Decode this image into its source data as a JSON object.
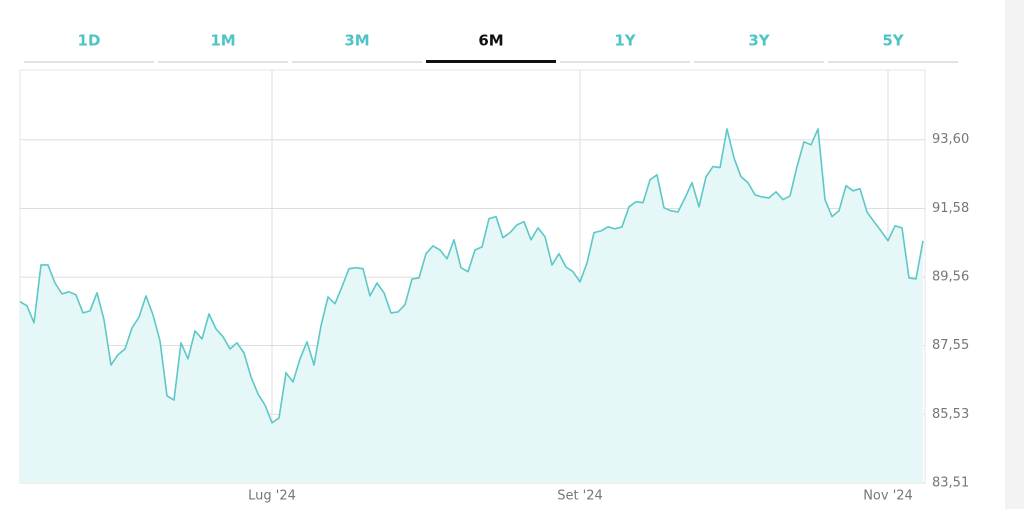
{
  "tabs": [
    {
      "label": "1D"
    },
    {
      "label": "1M"
    },
    {
      "label": "3M"
    },
    {
      "label": "6M",
      "selected": true
    },
    {
      "label": "1Y"
    },
    {
      "label": "3Y"
    },
    {
      "label": "5Y"
    }
  ],
  "chart_data": {
    "type": "line",
    "color": "#5cc8c8",
    "fill": "#e5f7f7",
    "grid": true,
    "categories": [
      null,
      null,
      null,
      null,
      null,
      null,
      null,
      null,
      null,
      null,
      null,
      null,
      null,
      null,
      null,
      null,
      null,
      null,
      null,
      null,
      null,
      null,
      null,
      null,
      null,
      null,
      null,
      null,
      null,
      null,
      null,
      null,
      null,
      null,
      null,
      null,
      "Lug '24",
      null,
      null,
      null,
      null,
      null,
      null,
      null,
      null,
      null,
      null,
      null,
      null,
      null,
      null,
      null,
      null,
      null,
      null,
      null,
      null,
      null,
      null,
      null,
      null,
      null,
      null,
      null,
      null,
      null,
      null,
      null,
      null,
      null,
      null,
      null,
      null,
      null,
      null,
      null,
      null,
      null,
      null,
      null,
      "Set '24",
      null,
      null,
      null,
      null,
      null,
      null,
      null,
      null,
      null,
      null,
      null,
      null,
      null,
      null,
      null,
      null,
      null,
      null,
      null,
      null,
      null,
      null,
      null,
      null,
      null,
      null,
      null,
      null,
      null,
      null,
      null,
      null,
      null,
      null,
      null,
      null,
      null,
      null,
      null,
      null,
      null,
      null,
      null,
      "Nov '24",
      null,
      null,
      null,
      null,
      null
    ],
    "values": [
      88.84,
      88.72,
      88.22,
      89.92,
      89.92,
      89.39,
      89.07,
      89.13,
      89.04,
      88.51,
      88.57,
      89.1,
      88.31,
      86.98,
      87.28,
      87.45,
      88.07,
      88.39,
      89.01,
      88.45,
      87.69,
      86.07,
      85.95,
      87.63,
      87.16,
      87.98,
      87.75,
      88.48,
      88.04,
      87.81,
      87.45,
      87.63,
      87.33,
      86.63,
      86.13,
      85.8,
      85.28,
      85.42,
      86.75,
      86.48,
      87.16,
      87.66,
      86.98,
      88.13,
      88.98,
      88.78,
      89.28,
      89.81,
      89.84,
      89.81,
      89.01,
      89.39,
      89.1,
      88.51,
      88.54,
      88.75,
      89.51,
      89.54,
      90.25,
      90.48,
      90.36,
      90.1,
      90.66,
      89.84,
      89.72,
      90.36,
      90.45,
      91.28,
      91.34,
      90.72,
      90.87,
      91.1,
      91.19,
      90.66,
      91.01,
      90.75,
      89.92,
      90.25,
      89.86,
      89.72,
      89.42,
      89.98,
      90.87,
      90.92,
      91.04,
      90.98,
      91.04,
      91.63,
      91.78,
      91.75,
      92.42,
      92.57,
      91.6,
      91.51,
      91.48,
      91.89,
      92.34,
      91.63,
      92.51,
      92.81,
      92.78,
      93.92,
      93.07,
      92.51,
      92.34,
      91.98,
      91.92,
      91.89,
      92.07,
      91.84,
      91.95,
      92.81,
      93.54,
      93.45,
      93.92,
      91.84,
      91.34,
      91.51,
      92.25,
      92.1,
      92.16,
      91.48,
      91.19,
      90.92,
      90.63,
      91.07,
      91.01,
      89.54,
      89.51,
      90.63
    ],
    "ylim": [
      83.51,
      95.65
    ],
    "yticks": [
      {
        "value": 83.51,
        "label": "83,51"
      },
      {
        "value": 85.53,
        "label": "85,53"
      },
      {
        "value": 87.55,
        "label": "87,55"
      },
      {
        "value": 89.56,
        "label": "89,56"
      },
      {
        "value": 91.58,
        "label": "91,58"
      },
      {
        "value": 93.6,
        "label": "93,60"
      }
    ]
  }
}
